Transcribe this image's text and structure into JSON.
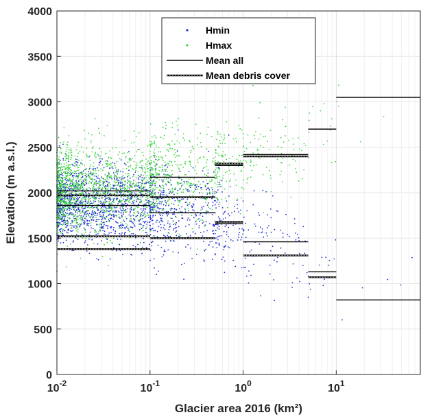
{
  "chart_data": {
    "type": "scatter",
    "title": "",
    "xlabel": "Glacier area 2016 (km²)",
    "ylabel": "Elevation (m a.s.l.)",
    "xscale": "log",
    "xlim": [
      0.01,
      80
    ],
    "ylim": [
      0,
      4000
    ],
    "x_ticks": [
      {
        "value": 0.01,
        "base": "10",
        "exp": "-2"
      },
      {
        "value": 0.1,
        "base": "10",
        "exp": "-1"
      },
      {
        "value": 1,
        "base": "10",
        "exp": "0"
      },
      {
        "value": 10,
        "base": "10",
        "exp": "1"
      }
    ],
    "y_ticks": [
      "0",
      "500",
      "1000",
      "1500",
      "2000",
      "2500",
      "3000",
      "3500",
      "4000"
    ],
    "grid": true,
    "legend": {
      "placement": "top-center",
      "entries": [
        {
          "label": "Hmin",
          "marker": "dot",
          "color": "#1f2ecf"
        },
        {
          "label": "Hmax",
          "marker": "dot",
          "color": "#3fd63f"
        },
        {
          "label": "Mean all",
          "marker": "solid-line",
          "color": "#000000"
        },
        {
          "label": "Mean debris cover",
          "marker": "dashed-line",
          "color": "#000000"
        }
      ]
    },
    "series": [
      {
        "name": "Hmin",
        "color": "#1f2ecf",
        "kind": "scatter",
        "clusters": [
          {
            "x_range": [
              0.01,
              0.1
            ],
            "y_mean": 1870,
            "y_sd": 210,
            "count": 1300
          },
          {
            "x_range": [
              0.1,
              0.5
            ],
            "y_mean": 1800,
            "y_sd": 250,
            "count": 420
          },
          {
            "x_range": [
              0.5,
              1
            ],
            "y_mean": 1650,
            "y_sd": 260,
            "count": 110
          },
          {
            "x_range": [
              1,
              5
            ],
            "y_mean": 1480,
            "y_sd": 260,
            "count": 90
          },
          {
            "x_range": [
              5,
              10
            ],
            "y_mean": 1120,
            "y_sd": 180,
            "count": 14
          },
          {
            "x_range": [
              10,
              80
            ],
            "y_mean": 820,
            "y_sd": 300,
            "count": 5
          }
        ]
      },
      {
        "name": "Hmax",
        "color": "#3fd63f",
        "kind": "scatter",
        "clusters": [
          {
            "x_range": [
              0.01,
              0.1
            ],
            "y_mean": 2030,
            "y_sd": 250,
            "count": 1300
          },
          {
            "x_range": [
              0.1,
              0.5
            ],
            "y_mean": 2170,
            "y_sd": 260,
            "count": 420
          },
          {
            "x_range": [
              0.5,
              1
            ],
            "y_mean": 2300,
            "y_sd": 230,
            "count": 110
          },
          {
            "x_range": [
              1,
              5
            ],
            "y_mean": 2420,
            "y_sd": 230,
            "count": 90
          },
          {
            "x_range": [
              5,
              10
            ],
            "y_mean": 2700,
            "y_sd": 250,
            "count": 14
          },
          {
            "x_range": [
              10,
              80
            ],
            "y_mean": 3050,
            "y_sd": 300,
            "count": 5
          }
        ]
      },
      {
        "name": "Mean all",
        "kind": "step-lines",
        "style": "solid",
        "color": "#000000",
        "segments": [
          {
            "x": [
              0.01,
              0.1
            ],
            "y": 2020
          },
          {
            "x": [
              0.01,
              0.1
            ],
            "y": 1860
          },
          {
            "x": [
              0.1,
              0.5
            ],
            "y": 2170
          },
          {
            "x": [
              0.1,
              0.5
            ],
            "y": 1780
          },
          {
            "x": [
              0.5,
              1
            ],
            "y": 2300
          },
          {
            "x": [
              0.5,
              1
            ],
            "y": 1660
          },
          {
            "x": [
              1,
              5
            ],
            "y": 2420
          },
          {
            "x": [
              1,
              5
            ],
            "y": 1460
          },
          {
            "x": [
              5,
              10
            ],
            "y": 2700
          },
          {
            "x": [
              5,
              10
            ],
            "y": 1130
          },
          {
            "x": [
              10,
              80
            ],
            "y": 3050
          },
          {
            "x": [
              10,
              80
            ],
            "y": 820
          }
        ]
      },
      {
        "name": "Mean debris cover",
        "kind": "step-lines",
        "style": "dashed",
        "color": "#000000",
        "segments": [
          {
            "x": [
              0.01,
              0.1
            ],
            "y": 1970
          },
          {
            "x": [
              0.01,
              0.1
            ],
            "y": 1520
          },
          {
            "x": [
              0.01,
              0.1
            ],
            "y": 1380
          },
          {
            "x": [
              0.1,
              0.5
            ],
            "y": 1950
          },
          {
            "x": [
              0.1,
              0.5
            ],
            "y": 1500
          },
          {
            "x": [
              0.5,
              1
            ],
            "y": 2320
          },
          {
            "x": [
              0.5,
              1
            ],
            "y": 1680
          },
          {
            "x": [
              1,
              5
            ],
            "y": 2400
          },
          {
            "x": [
              1,
              5
            ],
            "y": 1310
          },
          {
            "x": [
              5,
              10
            ],
            "y": 1070
          }
        ]
      }
    ]
  }
}
